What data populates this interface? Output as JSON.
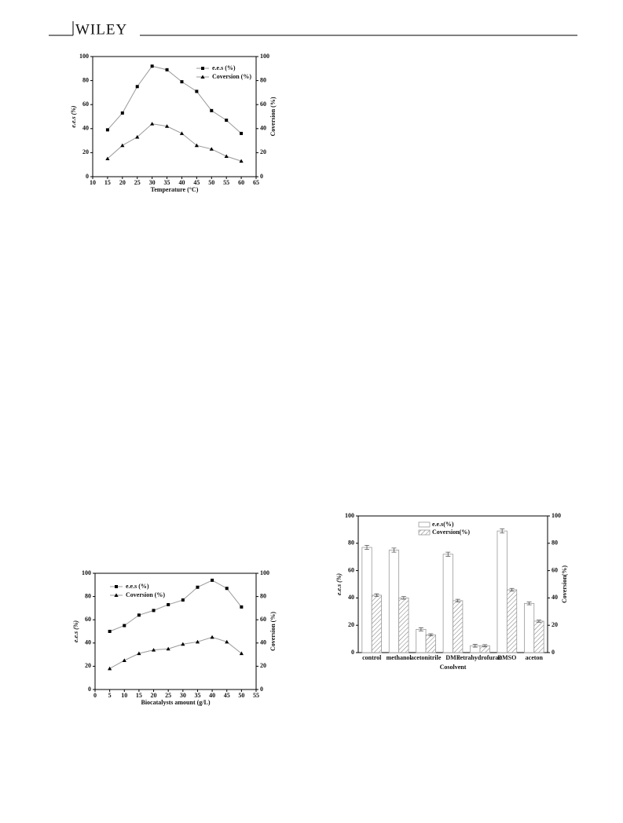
{
  "header": {
    "logo": "WILEY"
  },
  "chart_data": [
    {
      "type": "line",
      "xlabel": "Temperature (°C)",
      "ylabel": "e.e.s (%)",
      "y2label": "Coversion (%)",
      "x": [
        15,
        20,
        25,
        30,
        35,
        40,
        45,
        50,
        55,
        60
      ],
      "xlim": [
        10,
        65
      ],
      "xticks": [
        10,
        15,
        20,
        25,
        30,
        35,
        40,
        45,
        50,
        55,
        60,
        65
      ],
      "ylim": [
        0,
        100
      ],
      "yticks": [
        0,
        20,
        40,
        60,
        80,
        100
      ],
      "y2lim": [
        0,
        100
      ],
      "y2ticks": [
        0,
        20,
        40,
        60,
        80,
        100
      ],
      "legend": "upper right",
      "series": [
        {
          "name": "e.e.s (%)",
          "color": "#999999",
          "marker": "square",
          "values": [
            39,
            53,
            75,
            92,
            89,
            79,
            71,
            55,
            47,
            36
          ]
        },
        {
          "name": "Coversion (%)",
          "color": "#999999",
          "marker": "triangle",
          "axis": "y2",
          "values": [
            15,
            26,
            33,
            44,
            42,
            36,
            26,
            23,
            17,
            13
          ]
        }
      ]
    },
    {
      "type": "line",
      "xlabel": "Biocatalysts amount (g/L)",
      "ylabel": "e.e.s (%)",
      "y2label": "Coversion (%)",
      "x": [
        5,
        10,
        15,
        20,
        25,
        30,
        35,
        40,
        45,
        50
      ],
      "xlim": [
        0,
        55
      ],
      "xticks": [
        0,
        5,
        10,
        15,
        20,
        25,
        30,
        35,
        40,
        45,
        50,
        55
      ],
      "ylim": [
        0,
        100
      ],
      "yticks": [
        0,
        20,
        40,
        60,
        80,
        100
      ],
      "y2lim": [
        0,
        100
      ],
      "y2ticks": [
        0,
        20,
        40,
        60,
        80,
        100
      ],
      "legend": "upper left",
      "series": [
        {
          "name": "e.e.s (%)",
          "color": "#999999",
          "marker": "square",
          "values": [
            50,
            55,
            64,
            68,
            73,
            77,
            88,
            94,
            87,
            71
          ]
        },
        {
          "name": "Coversion (%)",
          "color": "#999999",
          "marker": "triangle",
          "axis": "y2",
          "values": [
            18,
            25,
            31,
            34,
            35,
            39,
            41,
            45,
            41,
            31
          ]
        }
      ]
    },
    {
      "type": "bar",
      "xlabel": "Cosolvent",
      "ylabel": "e.e.s (%)",
      "y2label": "Coversion(%)",
      "categories": [
        "control",
        "methanol",
        "acetonitrile",
        "DMF",
        "tetrahydrofuran",
        "DMSO",
        "aceton"
      ],
      "ylim": [
        0,
        100
      ],
      "yticks": [
        0,
        20,
        40,
        60,
        80,
        100
      ],
      "y2lim": [
        0,
        100
      ],
      "y2ticks": [
        0,
        20,
        40,
        60,
        80,
        100
      ],
      "legend": "upper center",
      "series": [
        {
          "name": "e.e.s(%)",
          "color": "#ffffff",
          "values": [
            77,
            75,
            17,
            72,
            5,
            89,
            36
          ],
          "errors": [
            1.5,
            1.5,
            1.2,
            1.5,
            1,
            1.5,
            1
          ]
        },
        {
          "name": "Coversion(%)",
          "color": "#888888",
          "hatch": true,
          "axis": "y2",
          "values": [
            42,
            40,
            13,
            38,
            5,
            46,
            23
          ],
          "errors": [
            1,
            1,
            0.8,
            1,
            0.8,
            1,
            0.8
          ]
        }
      ]
    }
  ]
}
